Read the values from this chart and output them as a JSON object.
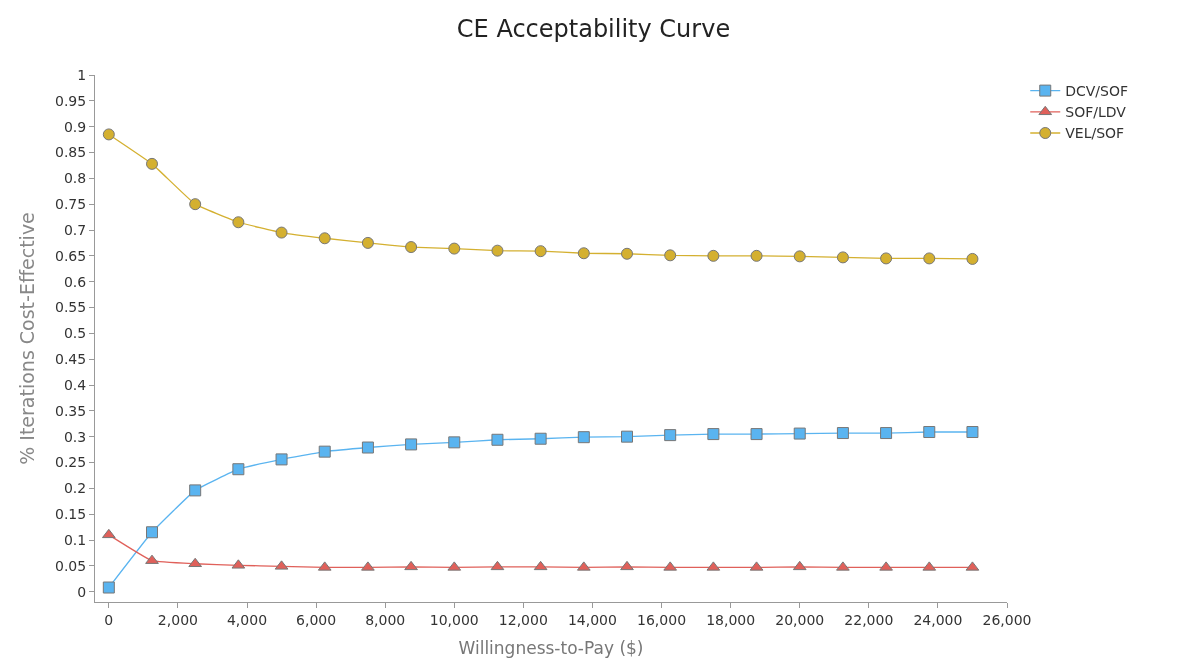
{
  "chart_data": {
    "type": "line",
    "title": "CE Acceptability Curve",
    "xlabel": "Willingness-to-Pay ($)",
    "ylabel": "% Iterations Cost-Effective",
    "x": [
      0,
      1250,
      2500,
      3750,
      5000,
      6250,
      7500,
      8750,
      10000,
      11250,
      12500,
      13750,
      15000,
      16250,
      17500,
      18750,
      20000,
      21250,
      22500,
      23750,
      25000
    ],
    "series": [
      {
        "name": "DCV/SOF",
        "color": "#5ab4f0",
        "marker": "square",
        "values": [
          0.008,
          0.115,
          0.196,
          0.237,
          0.256,
          0.271,
          0.279,
          0.285,
          0.289,
          0.294,
          0.296,
          0.299,
          0.3,
          0.303,
          0.305,
          0.305,
          0.306,
          0.307,
          0.307,
          0.309,
          0.309
        ]
      },
      {
        "name": "SOF/LDV",
        "color": "#e0605a",
        "marker": "triangle",
        "values": [
          0.11,
          0.06,
          0.054,
          0.051,
          0.049,
          0.047,
          0.047,
          0.048,
          0.047,
          0.048,
          0.048,
          0.047,
          0.048,
          0.047,
          0.047,
          0.047,
          0.048,
          0.047,
          0.047,
          0.047,
          0.047
        ]
      },
      {
        "name": "VEL/SOF",
        "color": "#d4b030",
        "marker": "circle",
        "values": [
          0.885,
          0.828,
          0.75,
          0.715,
          0.695,
          0.684,
          0.675,
          0.667,
          0.664,
          0.66,
          0.659,
          0.655,
          0.654,
          0.651,
          0.65,
          0.65,
          0.649,
          0.647,
          0.645,
          0.645,
          0.644
        ]
      }
    ],
    "xlim": [
      -400,
      26000
    ],
    "xticks": [
      0,
      {
        "value": 2000,
        "label": "2,000"
      },
      {
        "value": 4000,
        "label": "4,000"
      },
      {
        "value": 6000,
        "label": "6,000"
      },
      {
        "value": 8000,
        "label": "8,000"
      },
      {
        "value": 10000,
        "label": "10,000"
      },
      {
        "value": 12000,
        "label": "12,000"
      },
      {
        "value": 14000,
        "label": "14,000"
      },
      {
        "value": 16000,
        "label": "16,000"
      },
      {
        "value": 18000,
        "label": "18,000"
      },
      {
        "value": 20000,
        "label": "20,000"
      },
      {
        "value": 22000,
        "label": "22,000"
      },
      {
        "value": 24000,
        "label": "24,000"
      },
      {
        "value": 26000,
        "label": "26,000"
      }
    ],
    "ylim": [
      -0.02,
      1
    ],
    "yticks": [
      0,
      0.05,
      0.1,
      0.15,
      0.2,
      0.25,
      0.3,
      0.35,
      0.4,
      0.45,
      0.5,
      0.55,
      0.6,
      0.65,
      0.7,
      0.75,
      0.8,
      0.85,
      0.9,
      0.95,
      1
    ],
    "legend": "top right",
    "line_style": "solid"
  }
}
